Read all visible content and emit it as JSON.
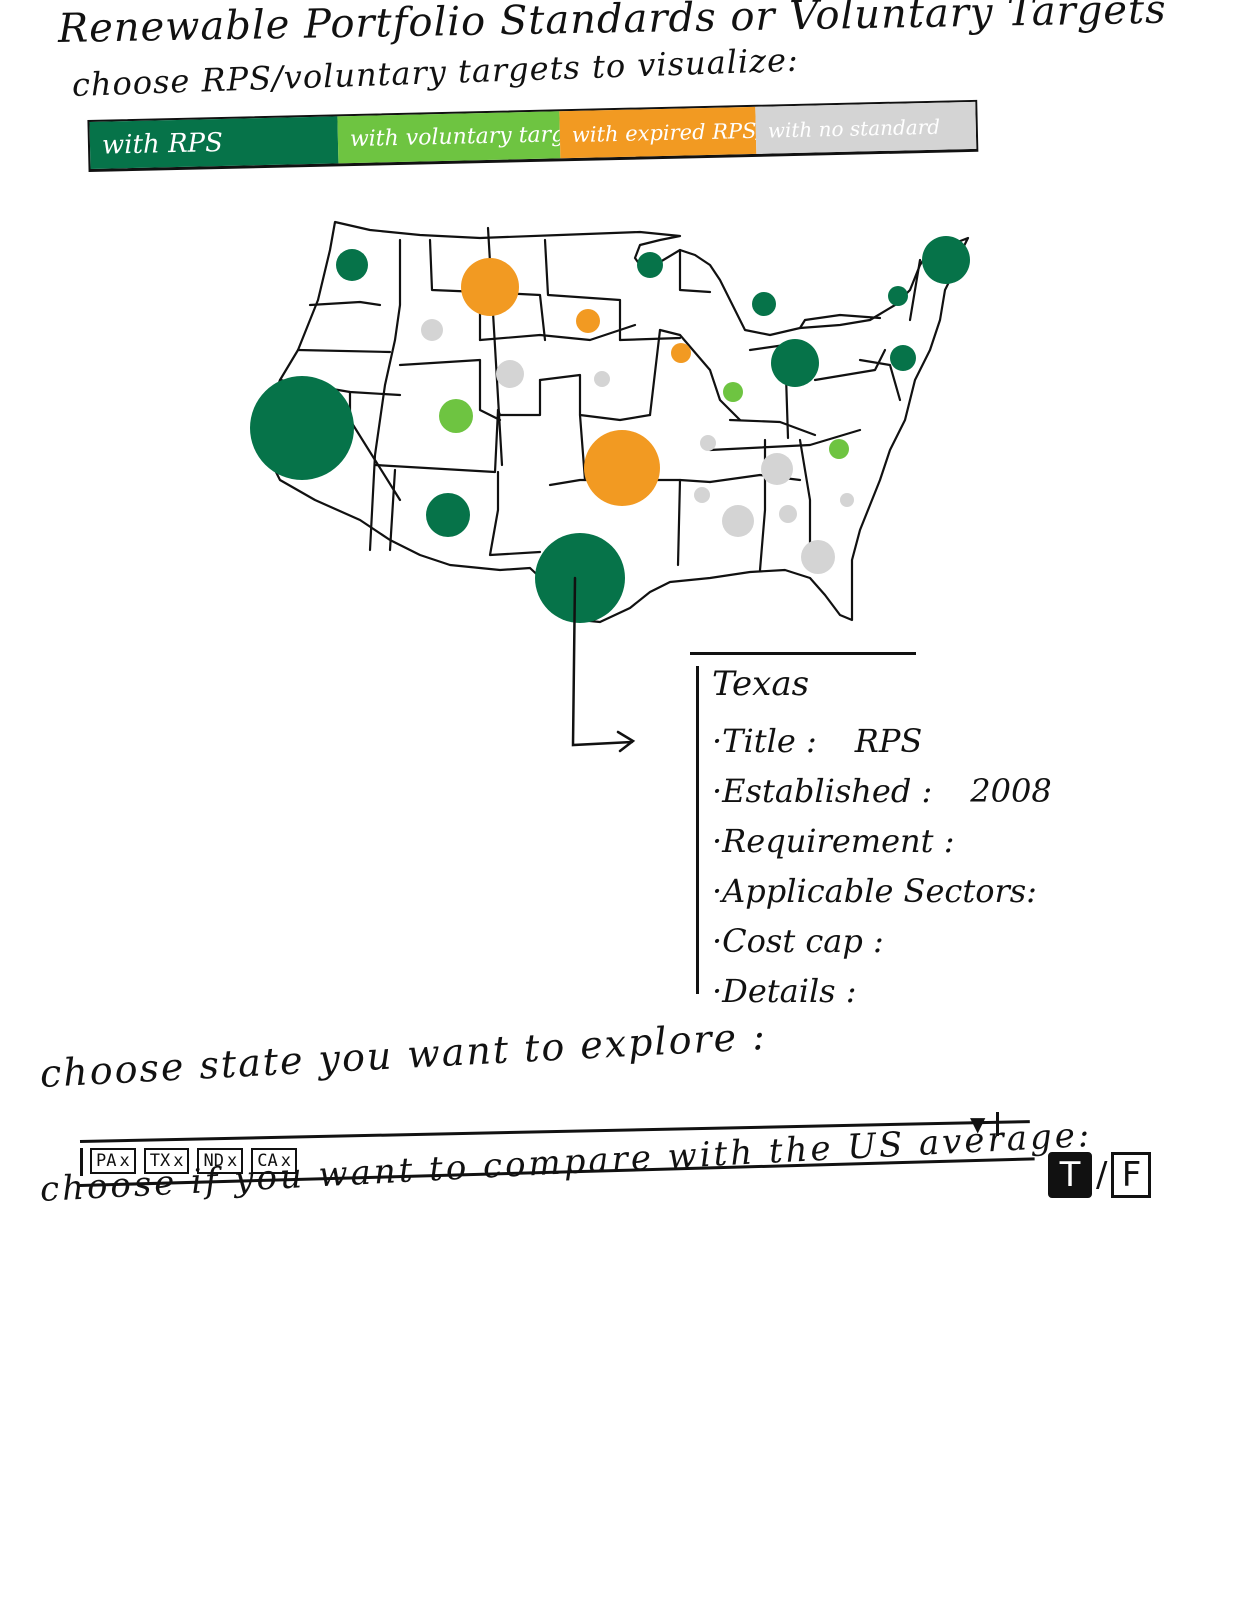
{
  "header": {
    "title": "Renewable Portfolio Standards or Voluntary Targets",
    "subtitle": "choose RPS/voluntary targets to visualize:"
  },
  "legend": {
    "items": [
      {
        "label": "with RPS",
        "color": "#067349"
      },
      {
        "label": "with voluntary targets",
        "color": "#6ec441"
      },
      {
        "label": "with expired RPS/CES",
        "color": "#f29a22"
      },
      {
        "label": "with no standard",
        "color": "#d4d4d4"
      }
    ]
  },
  "map": {
    "bubble_colors": {
      "rps": "#067349",
      "voluntary": "#6ec441",
      "expired": "#f29a22",
      "none": "#d4d4d4"
    }
  },
  "detail": {
    "state": "Texas",
    "fields": [
      {
        "label": "·Title :",
        "value": "RPS"
      },
      {
        "label": "·Established :",
        "value": "2008"
      },
      {
        "label": "·Requirement :",
        "value": ""
      },
      {
        "label": "·Applicable Sectors:",
        "value": ""
      },
      {
        "label": "·Cost cap :",
        "value": ""
      },
      {
        "label": "·Details :",
        "value": ""
      }
    ]
  },
  "state_picker": {
    "prompt": "choose state you want to explore :",
    "chips": [
      {
        "label": "PA",
        "remove": "x"
      },
      {
        "label": "TX",
        "remove": "x"
      },
      {
        "label": "ND",
        "remove": "x"
      },
      {
        "label": "CA",
        "remove": "x"
      }
    ]
  },
  "compare": {
    "prompt": "choose if you want to compare with the US average:",
    "true_label": "T",
    "separator": "/",
    "false_label": "F",
    "selected": "T"
  }
}
